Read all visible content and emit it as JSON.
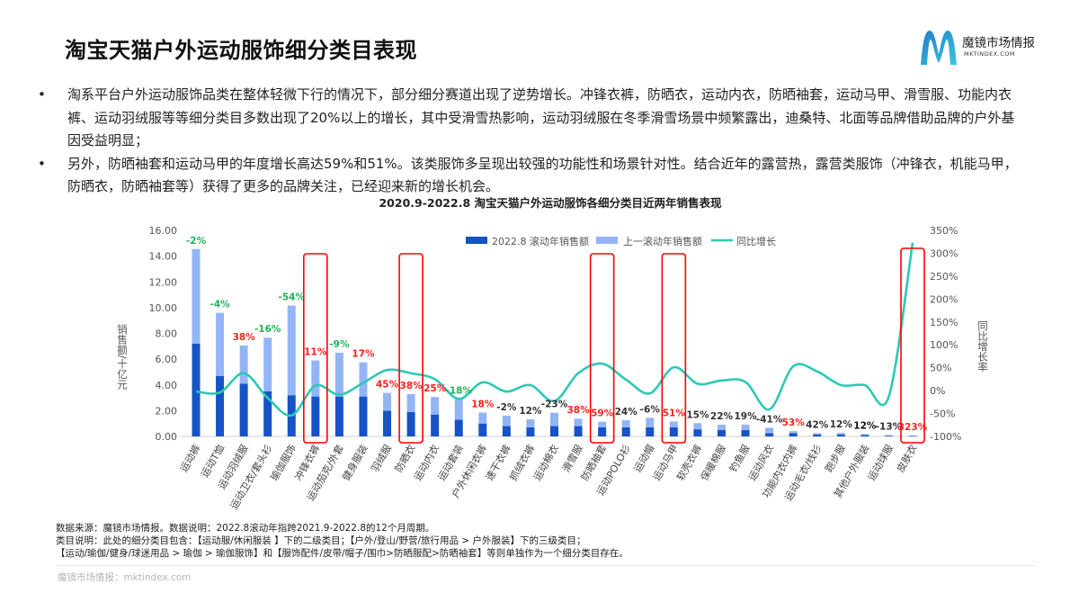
{
  "title": "淘宝天猫户外运动服饰细分类目表现",
  "logo": {
    "brand": "魔镜市场情报",
    "url": "MKTINDEX.COM"
  },
  "bullets": [
    "淘系平台户外运动服饰品类在整体轻微下行的情况下，部分细分赛道出现了逆势增长。冲锋衣裤，防晒衣，运动内衣，防晒袖套，运动马甲、滑雪服、功能内衣裤、运动羽绒服等等细分类目多数出现了20%以上的增长，其中受滑雪热影响，运动羽绒服在冬季滑雪场景中频繁露出，迪桑特、北面等品牌借助品牌的户外基因受益明显；",
    "另外，防晒袖套和运动马甲的年度增长高达59%和51%。该类服饰多呈现出较强的功能性和场景针对性。结合近年的露营热，露营类服饰（冲锋衣，机能马甲，防晒衣，防晒袖套等）获得了更多的品牌关注，已经迎来新的增长机会。"
  ],
  "chart_data": {
    "type": "bar",
    "stacked": true,
    "title": "2020.9-2022.8 淘宝天猫户外运动服饰各细分类目近两年销售表现",
    "ylabel": "销售额/十亿元",
    "y2label": "同比增长率",
    "ylim": [
      0,
      16
    ],
    "y2lim": [
      -100,
      350
    ],
    "yticks": [
      "0.00",
      "2.00",
      "4.00",
      "6.00",
      "8.00",
      "10.00",
      "12.00",
      "14.00",
      "16.00"
    ],
    "y2ticks": [
      "-100%",
      "-50%",
      "0%",
      "50%",
      "100%",
      "150%",
      "200%",
      "250%",
      "300%",
      "350%"
    ],
    "legend_position": "top-right",
    "categories": [
      "运动裤",
      "运动T恤",
      "运动羽绒服",
      "运动卫衣/套头衫",
      "瑜伽服饰",
      "冲锋衣裤",
      "运动茄克/外套",
      "健身服装",
      "羽绒服",
      "防晒衣",
      "运动内衣",
      "运动套装",
      "户外休闲衣裤",
      "速干衣裤",
      "抓绒衣裤",
      "运动棉衣",
      "滑雪服",
      "防晒袖套",
      "运动POLO衫",
      "运动帽",
      "运动马甲",
      "软壳衣裤",
      "保暖棉服",
      "钓鱼服",
      "运动风衣",
      "功能内衣内裤",
      "运动毛衣/线衫",
      "跑步服",
      "其他户外服装",
      "运动球服",
      "皮肤衣"
    ],
    "series": [
      {
        "name": "2022.8 滚动年销售额",
        "type": "bar",
        "color": "#1553c7",
        "values": [
          7.2,
          4.7,
          4.1,
          3.5,
          3.2,
          3.1,
          3.1,
          3.1,
          2.0,
          1.9,
          1.7,
          1.3,
          1.0,
          0.8,
          0.7,
          0.8,
          0.8,
          0.7,
          0.7,
          0.7,
          0.7,
          0.55,
          0.5,
          0.5,
          0.25,
          0.25,
          0.15,
          0.15,
          0.1,
          0.05,
          0.05
        ]
      },
      {
        "name": "上一滚动年销售额",
        "type": "bar",
        "color": "#93b5f5",
        "values": [
          7.35,
          4.9,
          2.97,
          4.17,
          6.96,
          2.8,
          3.4,
          2.65,
          1.38,
          1.38,
          1.36,
          1.59,
          0.85,
          0.82,
          0.63,
          1.04,
          0.58,
          0.44,
          0.56,
          0.74,
          0.46,
          0.48,
          0.41,
          0.42,
          0.42,
          0.16,
          0.11,
          0.13,
          0.09,
          0.06,
          0.01
        ]
      },
      {
        "name": "同比增长",
        "type": "line",
        "axis": "right",
        "color": "#2cc9b5",
        "values": [
          -2,
          -4,
          38,
          -16,
          -54,
          11,
          -9,
          17,
          45,
          38,
          25,
          -18,
          18,
          -2,
          12,
          -23,
          38,
          59,
          24,
          -6,
          51,
          15,
          22,
          19,
          -41,
          53,
          42,
          12,
          12,
          -13,
          323
        ]
      }
    ],
    "data_labels": [
      "-2%",
      "-4%",
      "38%",
      "-16%",
      "-54%",
      "11%",
      "-9%",
      "17%",
      "45%",
      "38%",
      "25%",
      "-18%",
      "18%",
      "-2%",
      "12%",
      "-23%",
      "38%",
      "59%",
      "24%",
      "-6%",
      "51%",
      "15%",
      "22%",
      "19%",
      "-41%",
      "53%",
      "42%",
      "12%",
      "12%",
      "-13%",
      "323%"
    ],
    "label_colors": [
      "#1fb35a",
      "#1fb35a",
      "#ff2020",
      "#1fb35a",
      "#1fb35a",
      "#ff2020",
      "#1fb35a",
      "#ff2020",
      "#ff2020",
      "#ff2020",
      "#ff2020",
      "#1fb35a",
      "#ff2020",
      "#333333",
      "#333333",
      "#333333",
      "#ff2020",
      "#ff2020",
      "#333333",
      "#333333",
      "#ff2020",
      "#333333",
      "#333333",
      "#333333",
      "#333333",
      "#ff2020",
      "#333333",
      "#333333",
      "#111111",
      "#333333",
      "#ff2020"
    ],
    "highlighted": [
      "冲锋衣裤",
      "防晒衣",
      "防晒袖套",
      "运动马甲",
      "皮肤衣"
    ],
    "highlight_color": "#ff0000"
  },
  "notes": [
    "数据来源：魔镜市场情报。数据说明：2022.8滚动年指跨2021.9-2022.8的12个月周期。",
    "类目说明：此处的细分类目包含：【运动服/休闲服装 】下的二级类目；【户外/登山/野营/旅行用品 > 户外服装】下的三级类目；",
    "【运动/瑜伽/健身/球迷用品 > 瑜伽 > 瑜伽服饰】和【服饰配件/皮带/帽子/围巾>防晒服配>防晒袖套】等则单独作为一个细分类目存在。"
  ],
  "footer": "魔镜市场情报：mktindex.com"
}
